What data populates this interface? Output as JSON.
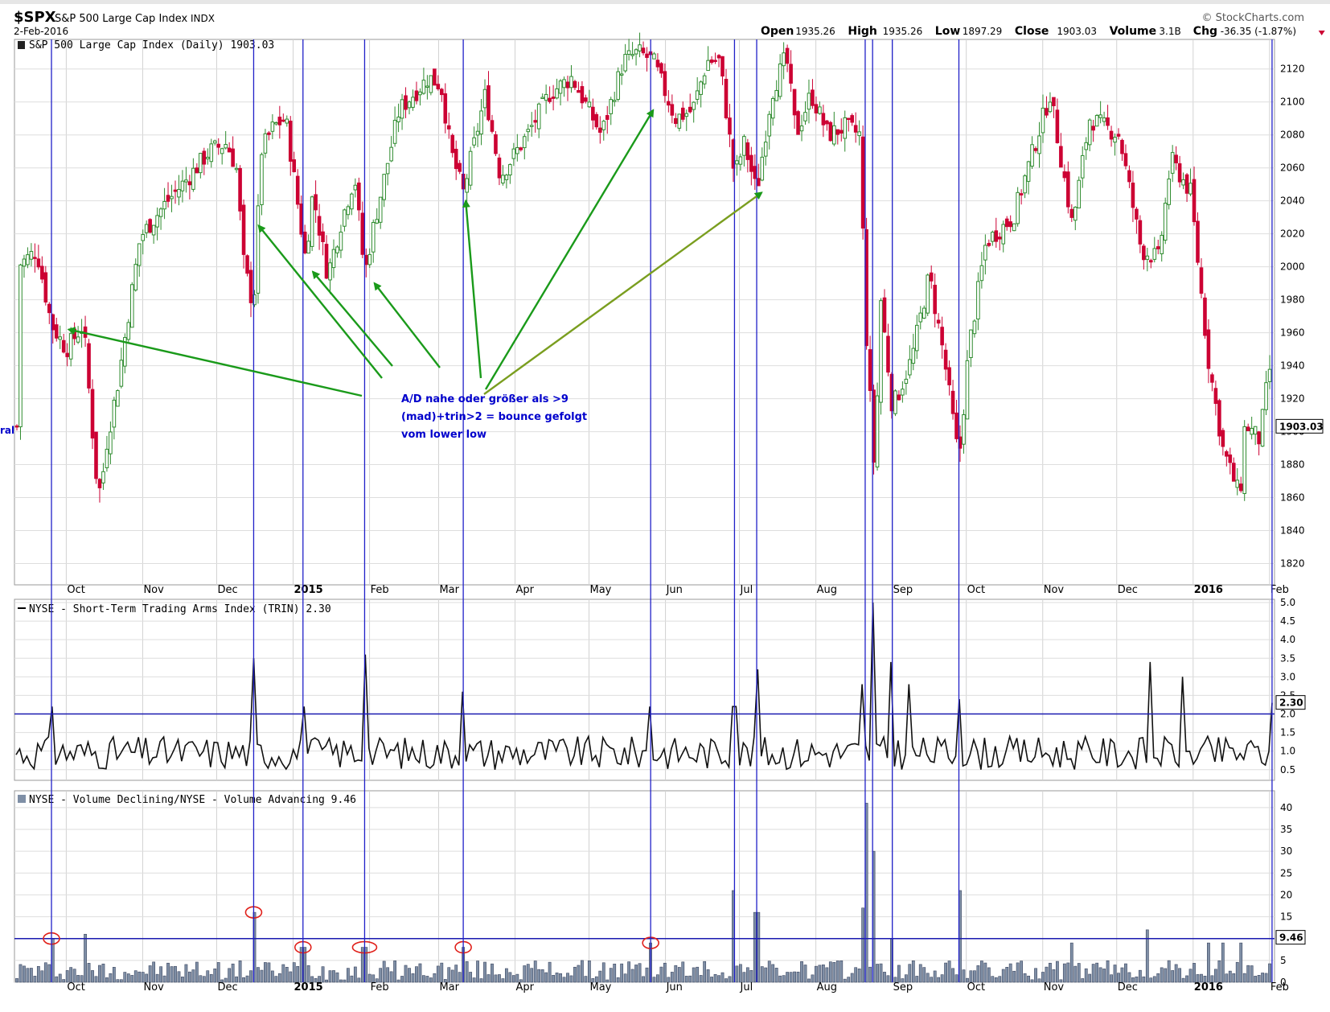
{
  "header": {
    "symbol": "$SPX",
    "name": "S&P 500 Large Cap Index",
    "exchange": "INDX",
    "date": "2-Feb-2016",
    "brand": "© StockCharts.com",
    "ohlc": [
      {
        "label": "Open",
        "value": "1935.26"
      },
      {
        "label": "High",
        "value": "1935.26"
      },
      {
        "label": "Low",
        "value": "1897.29"
      },
      {
        "label": "Close",
        "value": "1903.03"
      },
      {
        "label": "Volume",
        "value": "3.1B"
      },
      {
        "label": "Chg",
        "value": "-36.35 (-1.87%)"
      }
    ],
    "change_color": "#cc0033"
  },
  "left_edge_fragment": "ral",
  "annotation": {
    "lines": [
      "A/D nahe oder größer als >9",
      "(mad)+trin>2 = bounce gefolgt",
      "vom lower low"
    ],
    "color": "#0000cc",
    "arrow_color": "#1a9a1a"
  },
  "x_ticks": [
    "Oct",
    "Nov",
    "Dec",
    "2015",
    "Feb",
    "Mar",
    "Apr",
    "May",
    "Jun",
    "Jul",
    "Aug",
    "Sep",
    "Oct",
    "Nov",
    "Dec",
    "2016",
    "Feb"
  ],
  "chart_data": [
    {
      "type": "candlestick",
      "title": "S&P 500 Large Cap Index (Daily) 1903.03",
      "ylim": [
        1810,
        2135
      ],
      "yticks": [
        1820,
        1840,
        1860,
        1880,
        1900,
        1920,
        1940,
        1960,
        1980,
        2000,
        2020,
        2040,
        2060,
        2080,
        2100,
        2120
      ],
      "last_value_label": "1903.03",
      "up_color": "#2e8b2e",
      "down_color": "#cc0033",
      "close_path": [
        [
          "2014-09-11",
          2000
        ],
        [
          "2014-09-19",
          2010
        ],
        [
          "2014-09-25",
          1965
        ],
        [
          "2014-10-01",
          1950
        ],
        [
          "2014-10-08",
          1965
        ],
        [
          "2014-10-13",
          1875
        ],
        [
          "2014-10-15",
          1862
        ],
        [
          "2014-10-17",
          1890
        ],
        [
          "2014-10-22",
          1930
        ],
        [
          "2014-10-31",
          2018
        ],
        [
          "2014-11-10",
          2038
        ],
        [
          "2014-11-20",
          2055
        ],
        [
          "2014-11-28",
          2070
        ],
        [
          "2014-12-05",
          2075
        ],
        [
          "2014-12-09",
          2060
        ],
        [
          "2014-12-12",
          2002
        ],
        [
          "2014-12-16",
          1975
        ],
        [
          "2014-12-19",
          2070
        ],
        [
          "2014-12-24",
          2085
        ],
        [
          "2014-12-29",
          2090
        ],
        [
          "2015-01-06",
          2005
        ],
        [
          "2015-01-09",
          2045
        ],
        [
          "2015-01-15",
          1995
        ],
        [
          "2015-01-21",
          2030
        ],
        [
          "2015-01-26",
          2055
        ],
        [
          "2015-01-30",
          1995
        ],
        [
          "2015-02-02",
          2020
        ],
        [
          "2015-02-13",
          2095
        ],
        [
          "2015-02-25",
          2115
        ],
        [
          "2015-03-02",
          2110
        ],
        [
          "2015-03-06",
          2070
        ],
        [
          "2015-03-11",
          2045
        ],
        [
          "2015-03-20",
          2105
        ],
        [
          "2015-03-26",
          2055
        ],
        [
          "2015-04-06",
          2080
        ],
        [
          "2015-04-15",
          2105
        ],
        [
          "2015-04-24",
          2115
        ],
        [
          "2015-05-06",
          2080
        ],
        [
          "2015-05-15",
          2125
        ],
        [
          "2015-05-21",
          2130
        ],
        [
          "2015-05-27",
          2125
        ],
        [
          "2015-06-05",
          2090
        ],
        [
          "2015-06-12",
          2095
        ],
        [
          "2015-06-18",
          2125
        ],
        [
          "2015-06-23",
          2125
        ],
        [
          "2015-06-29",
          2055
        ],
        [
          "2015-07-03",
          2075
        ],
        [
          "2015-07-08",
          2045
        ],
        [
          "2015-07-14",
          2105
        ],
        [
          "2015-07-20",
          2128
        ],
        [
          "2015-07-24",
          2080
        ],
        [
          "2015-07-30",
          2105
        ],
        [
          "2015-08-06",
          2080
        ],
        [
          "2015-08-13",
          2085
        ],
        [
          "2015-08-19",
          2080
        ],
        [
          "2015-08-21",
          1970
        ],
        [
          "2015-08-24",
          1895
        ],
        [
          "2015-08-25",
          1868
        ],
        [
          "2015-08-27",
          1985
        ],
        [
          "2015-09-01",
          1915
        ],
        [
          "2015-09-04",
          1925
        ],
        [
          "2015-09-09",
          1945
        ],
        [
          "2015-09-16",
          1995
        ],
        [
          "2015-09-22",
          1945
        ],
        [
          "2015-09-28",
          1882
        ],
        [
          "2015-10-02",
          1950
        ],
        [
          "2015-10-09",
          2015
        ],
        [
          "2015-10-20",
          2030
        ],
        [
          "2015-10-30",
          2080
        ],
        [
          "2015-11-04",
          2105
        ],
        [
          "2015-11-13",
          2025
        ],
        [
          "2015-11-20",
          2090
        ],
        [
          "2015-12-02",
          2080
        ],
        [
          "2015-12-11",
          2010
        ],
        [
          "2015-12-18",
          2005
        ],
        [
          "2015-12-23",
          2065
        ],
        [
          "2015-12-31",
          2045
        ],
        [
          "2016-01-07",
          1945
        ],
        [
          "2016-01-13",
          1890
        ],
        [
          "2016-01-20",
          1860
        ],
        [
          "2016-01-22",
          1905
        ],
        [
          "2016-01-28",
          1895
        ],
        [
          "2016-02-01",
          1940
        ],
        [
          "2016-02-02",
          1903
        ]
      ]
    },
    {
      "type": "line",
      "title": "NYSE - Short-Term Trading Arms Index (TRIN) 2.30",
      "ylim": [
        0.3,
        5.0
      ],
      "yticks": [
        0.5,
        1.0,
        1.5,
        2.0,
        2.5,
        3.0,
        3.5,
        4.0,
        4.5,
        5.0
      ],
      "threshold": 2.0,
      "last_value_label": "2.30",
      "baseline_range": [
        0.5,
        1.4
      ],
      "spikes": [
        [
          "2014-09-25",
          2.2
        ],
        [
          "2014-12-16",
          3.5
        ],
        [
          "2015-01-05",
          2.2
        ],
        [
          "2015-01-30",
          3.6
        ],
        [
          "2015-03-11",
          2.6
        ],
        [
          "2015-05-26",
          2.2
        ],
        [
          "2015-06-29",
          2.2
        ],
        [
          "2015-07-08",
          3.2
        ],
        [
          "2015-08-20",
          2.8
        ],
        [
          "2015-08-24",
          5.0
        ],
        [
          "2015-09-01",
          3.4
        ],
        [
          "2015-09-08",
          2.8
        ],
        [
          "2015-09-28",
          2.4
        ],
        [
          "2015-12-14",
          3.4
        ],
        [
          "2015-12-28",
          3.0
        ],
        [
          "2016-02-02",
          2.3
        ]
      ]
    },
    {
      "type": "bar",
      "title": "NYSE - Volume Declining/NYSE - Volume Advancing 9.46",
      "ylim": [
        0,
        42
      ],
      "yticks": [
        0,
        5,
        10,
        15,
        20,
        25,
        30,
        35,
        40
      ],
      "threshold": 10,
      "last_value_label": "9.46",
      "bar_color": "#7f8fa6",
      "spikes": [
        [
          "2014-09-25",
          10
        ],
        [
          "2014-10-09",
          11
        ],
        [
          "2014-12-16",
          16
        ],
        [
          "2015-01-05",
          8
        ],
        [
          "2015-01-30",
          8
        ],
        [
          "2015-03-11",
          8
        ],
        [
          "2015-05-26",
          9
        ],
        [
          "2015-06-29",
          21
        ],
        [
          "2015-07-08",
          16
        ],
        [
          "2015-08-20",
          17
        ],
        [
          "2015-08-21",
          41
        ],
        [
          "2015-08-24",
          30
        ],
        [
          "2015-09-01",
          10
        ],
        [
          "2015-09-28",
          21
        ],
        [
          "2015-11-13",
          9
        ],
        [
          "2015-12-14",
          12
        ],
        [
          "2016-01-07",
          9
        ],
        [
          "2016-01-13",
          9
        ],
        [
          "2016-01-20",
          9
        ]
      ],
      "circled_dates": [
        "2014-09-25",
        "2014-12-16",
        "2015-01-05",
        "2015-01-30",
        "2015-03-11",
        "2015-05-26"
      ]
    }
  ],
  "marker_dates": [
    "2014-09-25",
    "2014-12-16",
    "2015-01-05",
    "2015-01-30",
    "2015-03-11",
    "2015-05-26",
    "2015-06-29",
    "2015-07-08",
    "2015-08-21",
    "2015-08-24",
    "2015-09-01",
    "2015-09-28",
    "2016-02-02"
  ],
  "arrow_targets": [
    "2014-10-02",
    "2014-12-18",
    "2015-01-09",
    "2015-02-03",
    "2015-03-12",
    "2015-05-27",
    "2015-07-10"
  ]
}
